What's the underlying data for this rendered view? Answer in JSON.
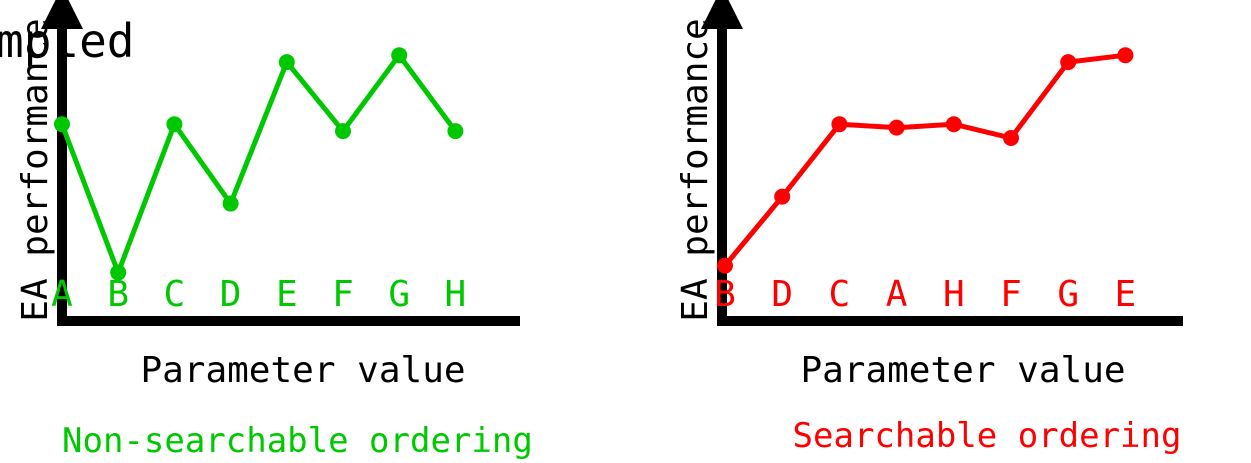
{
  "overlay_text": "mpled",
  "colors": {
    "axis": "#000000",
    "left": "#00c800",
    "right": "#ff0000"
  },
  "chart_data": [
    {
      "type": "line",
      "title": "",
      "ylabel": "EA performance",
      "xlabel": "Parameter value",
      "caption": "Non-searchable ordering",
      "color": "#00c800",
      "categories": [
        "A",
        "B",
        "C",
        "D",
        "E",
        "F",
        "G",
        "H"
      ],
      "values": [
        0.64,
        0.21,
        0.64,
        0.41,
        0.82,
        0.62,
        0.84,
        0.62
      ],
      "ylim": [
        0,
        1
      ],
      "grid": false,
      "legend": "none"
    },
    {
      "type": "line",
      "title": "",
      "ylabel": "EA performance",
      "xlabel": "Parameter value",
      "caption": "Searchable ordering",
      "color": "#ff0000",
      "categories": [
        "B",
        "D",
        "C",
        "A",
        "H",
        "F",
        "G",
        "E"
      ],
      "values": [
        0.23,
        0.43,
        0.64,
        0.63,
        0.64,
        0.6,
        0.82,
        0.84
      ],
      "ylim": [
        0,
        1
      ],
      "grid": false,
      "legend": "none"
    }
  ]
}
